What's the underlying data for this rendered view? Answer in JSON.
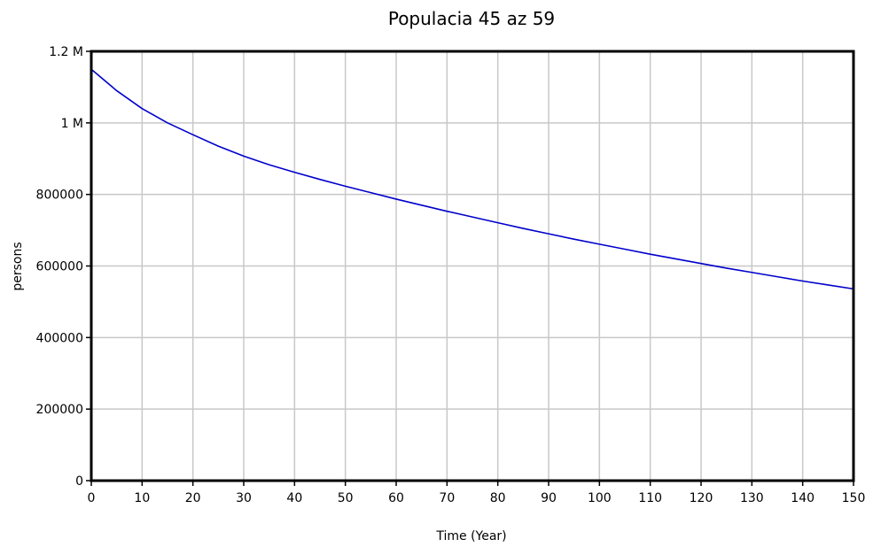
{
  "chart_data": {
    "type": "line",
    "title": "Populacia 45 az 59",
    "xlabel": "Time (Year)",
    "ylabel": "persons",
    "xlim": [
      0,
      150
    ],
    "ylim": [
      0,
      1200000
    ],
    "x_ticks": [
      0,
      10,
      20,
      30,
      40,
      50,
      60,
      70,
      80,
      90,
      100,
      110,
      120,
      130,
      140,
      150
    ],
    "x_tick_labels": [
      "0",
      "10",
      "20",
      "30",
      "40",
      "50",
      "60",
      "70",
      "80",
      "90",
      "100",
      "110",
      "120",
      "130",
      "140",
      "150"
    ],
    "y_ticks": [
      0,
      200000,
      400000,
      600000,
      800000,
      1000000,
      1200000
    ],
    "y_tick_labels": [
      "0",
      "200000",
      "400000",
      "600000",
      "800000",
      "1 M",
      "1.2 M"
    ],
    "grid": true,
    "series": [
      {
        "name": "Populacia 45 az 59",
        "color": "#0000cc",
        "x": [
          0,
          5,
          10,
          15,
          20,
          25,
          30,
          35,
          40,
          45,
          50,
          55,
          60,
          65,
          70,
          75,
          80,
          85,
          90,
          95,
          100,
          105,
          110,
          115,
          120,
          125,
          130,
          135,
          140,
          145,
          150
        ],
        "y": [
          1150000,
          1090000,
          1040000,
          1000000,
          967000,
          935000,
          907000,
          883000,
          862000,
          842000,
          823000,
          805000,
          787000,
          770000,
          753000,
          737000,
          721000,
          705000,
          690000,
          675000,
          661000,
          647000,
          633000,
          620000,
          607000,
          594000,
          582000,
          570000,
          558000,
          547000,
          536000
        ]
      }
    ]
  }
}
